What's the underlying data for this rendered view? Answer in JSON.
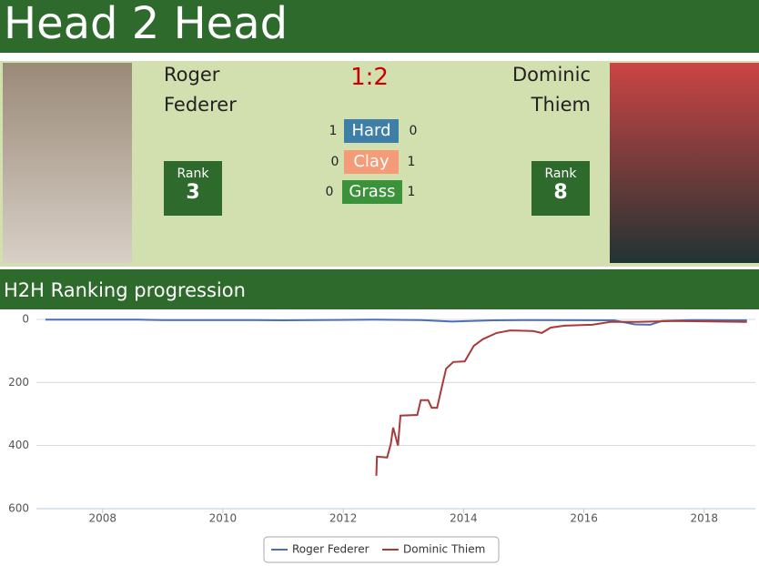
{
  "header": {
    "title": "Head 2 Head"
  },
  "score": "1:2",
  "rank_label": "Rank",
  "players": [
    {
      "name_lines": [
        "Roger",
        "Federer"
      ],
      "rank": 3
    },
    {
      "name_lines": [
        "Dominic",
        "Thiem"
      ],
      "rank": 8
    }
  ],
  "surfaces": [
    {
      "name": "Hard",
      "left": 1,
      "right": 0,
      "color": "#3f7ea6"
    },
    {
      "name": "Clay",
      "left": 0,
      "right": 1,
      "color": "#f59b78"
    },
    {
      "name": "Grass",
      "left": 0,
      "right": 1,
      "color": "#3b923b"
    }
  ],
  "section_title": "H2H Ranking progression",
  "chart_data": {
    "type": "line",
    "xlim": [
      2006.9,
      2018.85
    ],
    "xticks": [
      2008,
      2010,
      2012,
      2014,
      2016,
      2018
    ],
    "ylim": [
      0,
      600
    ],
    "yticks": [
      0,
      200,
      400,
      600
    ],
    "y_inverted": true,
    "grid": true,
    "legend": "bottom",
    "series": [
      {
        "name": "Roger Federer",
        "color": "#4a6fb5",
        "x": [
          2007.05,
          2008.6,
          2009.0,
          2010.5,
          2011.0,
          2012.5,
          2013.3,
          2013.8,
          2014.5,
          2015.0,
          2016.5,
          2016.85,
          2017.1,
          2017.3,
          2017.8,
          2018.71
        ],
        "values": [
          1,
          1,
          2,
          2,
          3,
          1,
          2,
          7,
          3,
          2,
          3,
          16,
          17,
          5,
          2,
          3
        ]
      },
      {
        "name": "Dominic Thiem",
        "color": "#a83a3a",
        "x": [
          2012.55,
          2012.56,
          2012.73,
          2012.79,
          2012.83,
          2012.91,
          2012.95,
          2013.23,
          2013.29,
          2013.41,
          2013.47,
          2013.56,
          2013.64,
          2013.71,
          2013.83,
          2014.02,
          2014.17,
          2014.32,
          2014.55,
          2014.77,
          2015.15,
          2015.3,
          2015.45,
          2015.68,
          2016.14,
          2016.44,
          2016.89,
          2017.5,
          2018.71
        ],
        "values": [
          496,
          435,
          438,
          395,
          343,
          400,
          305,
          303,
          256,
          256,
          280,
          280,
          213,
          156,
          135,
          133,
          84,
          63,
          43,
          35,
          37,
          43,
          26,
          20,
          17,
          8,
          8,
          5,
          8
        ]
      }
    ]
  }
}
